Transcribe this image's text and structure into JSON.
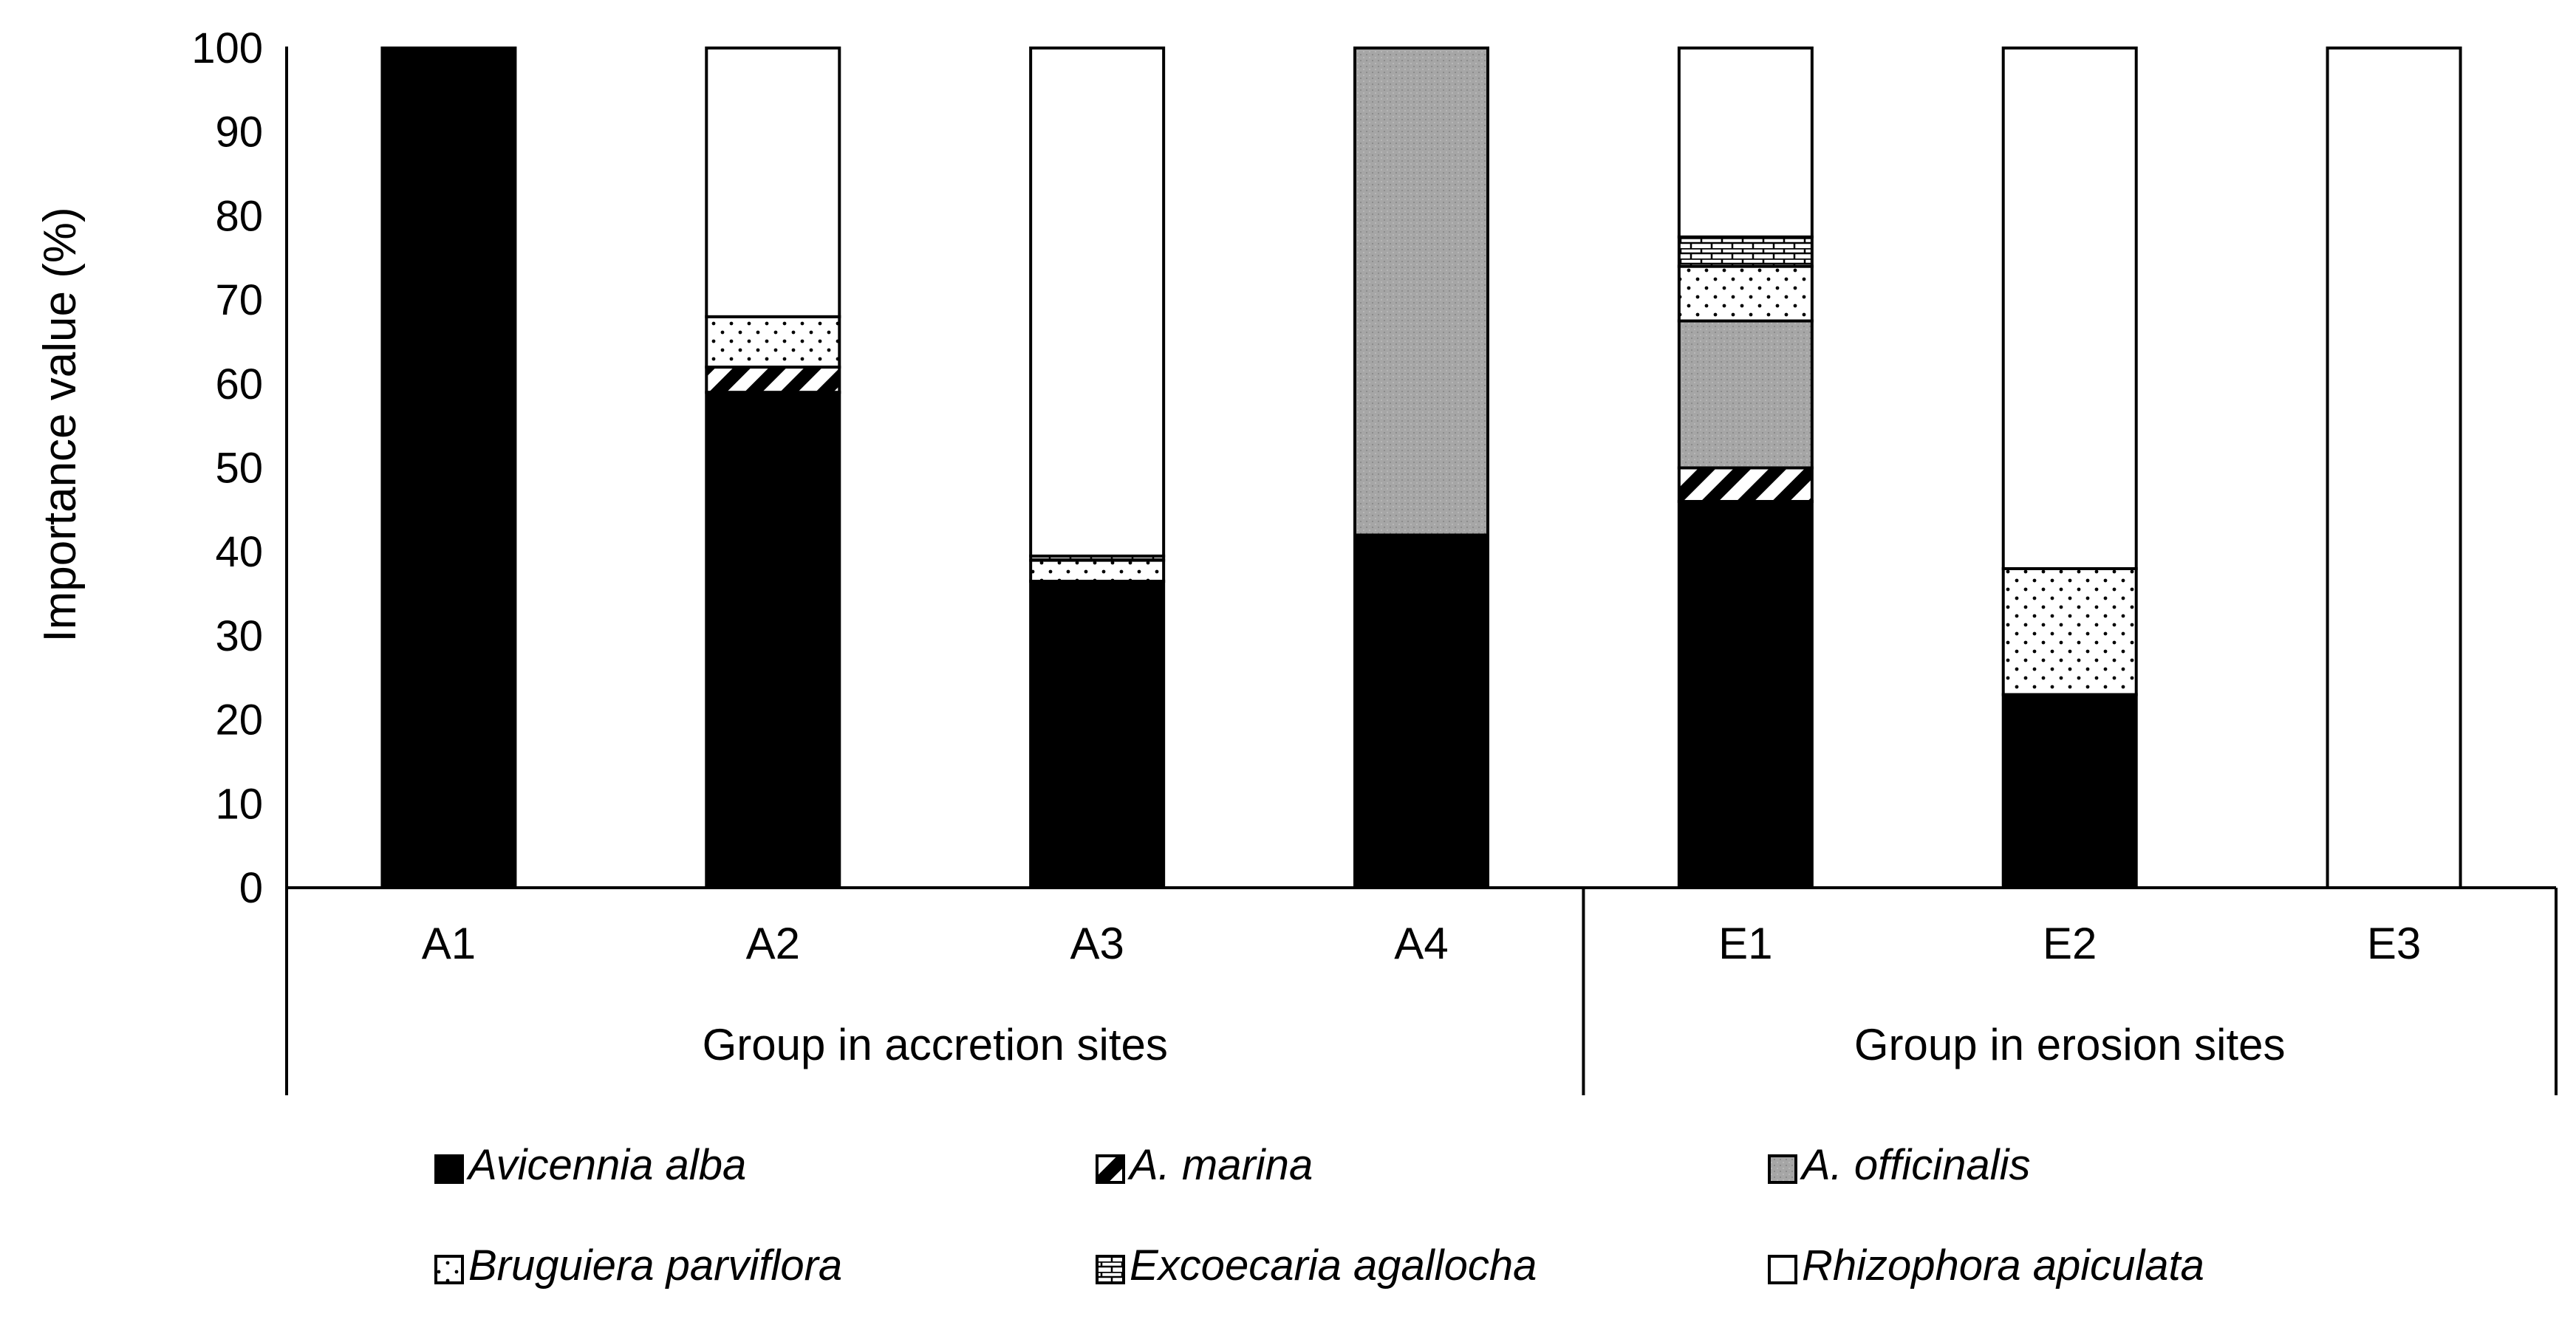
{
  "chart_data": {
    "type": "bar",
    "stacked": true,
    "title": "",
    "xlabel": "",
    "ylabel": "Importance  value (%)",
    "ylim": [
      0,
      100
    ],
    "yticks": [
      0,
      10,
      20,
      30,
      40,
      50,
      60,
      70,
      80,
      90,
      100
    ],
    "grid": false,
    "legend_position": "bottom",
    "categories": [
      "A1",
      "A2",
      "A3",
      "A4",
      "E1",
      "E2",
      "E3"
    ],
    "groups": [
      {
        "label": "Group in accretion sites",
        "categories": [
          "A1",
          "A2",
          "A3",
          "A4"
        ]
      },
      {
        "label": "Group in erosion sites",
        "categories": [
          "E1",
          "E2",
          "E3"
        ]
      }
    ],
    "series": [
      {
        "name": "Avicennia alba",
        "pattern": "solid-black",
        "values": [
          100,
          59,
          36.5,
          42,
          46,
          23,
          0
        ]
      },
      {
        "name": "A. marina",
        "pattern": "diagonal-stripes",
        "values": [
          0,
          3,
          0,
          0,
          4,
          0,
          0
        ]
      },
      {
        "name": "A. officinalis",
        "pattern": "gray-stipple",
        "values": [
          0,
          0,
          0,
          58,
          17.5,
          0,
          0
        ]
      },
      {
        "name": "Bruguiera parviflora",
        "pattern": "sparse-dots",
        "values": [
          0,
          6,
          2.5,
          0,
          6.5,
          15,
          0
        ]
      },
      {
        "name": "Excoecaria agallocha",
        "pattern": "brick",
        "values": [
          0,
          0,
          0.5,
          0,
          3.5,
          0,
          0
        ]
      },
      {
        "name": "Rhizophora apiculata",
        "pattern": "white",
        "values": [
          0,
          32,
          60.5,
          0,
          22.5,
          62,
          100
        ]
      }
    ],
    "colors": {
      "black": "#000000",
      "gray": "#a6a6a6",
      "white": "#ffffff"
    }
  }
}
